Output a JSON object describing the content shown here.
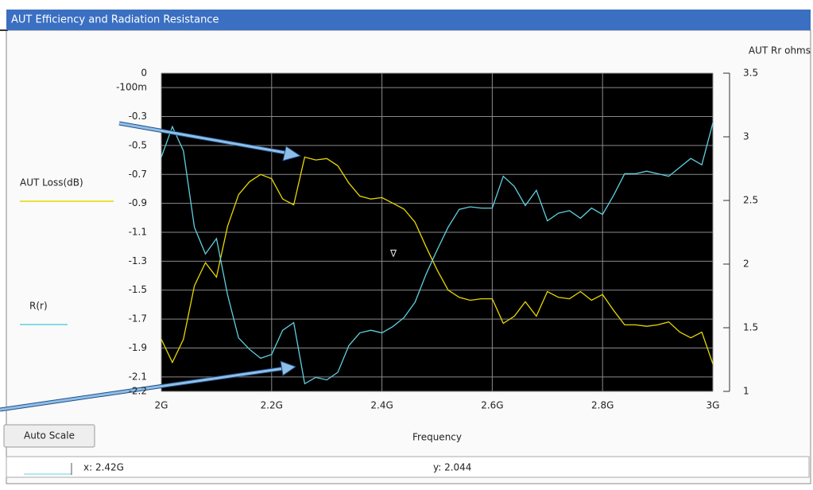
{
  "window": {
    "title": "AUT Efficiency and Radiation Resistance",
    "button": "Auto Scale",
    "status_x": "x: 2.42G",
    "status_y": "y: 2.044",
    "cursor_symbol": "∇"
  },
  "chart_data": {
    "type": "line",
    "x_label": "Frequency",
    "y2_label": "AUT Rr ohms",
    "x": [
      2,
      2.02,
      2.04,
      2.06,
      2.08,
      2.1,
      2.12,
      2.14,
      2.16,
      2.18,
      2.2,
      2.22,
      2.24,
      2.26,
      2.28,
      2.3,
      2.32,
      2.34,
      2.36,
      2.38,
      2.4,
      2.42,
      2.44,
      2.46,
      2.48,
      2.5,
      2.52,
      2.54,
      2.56,
      2.58,
      2.6,
      2.62,
      2.64,
      2.66,
      2.68,
      2.7,
      2.72,
      2.74,
      2.76,
      2.78,
      2.8,
      2.82,
      2.84,
      2.86,
      2.88,
      2.9,
      2.92,
      2.94,
      2.96,
      2.98,
      3
    ],
    "series": [
      {
        "name": "AUT Loss(dB)",
        "color": "#e8d800",
        "values": [
          -1.84,
          -2.0,
          -1.84,
          -1.47,
          -1.31,
          -1.41,
          -1.06,
          -0.84,
          -0.75,
          -0.7,
          -0.73,
          -0.87,
          -0.91,
          -0.58,
          -0.6,
          -0.59,
          -0.64,
          -0.76,
          -0.85,
          -0.87,
          -0.86,
          -0.9,
          -0.94,
          -1.03,
          -1.2,
          -1.36,
          -1.5,
          -1.55,
          -1.57,
          -1.56,
          -1.56,
          -1.73,
          -1.68,
          -1.58,
          -1.68,
          -1.51,
          -1.55,
          -1.56,
          -1.51,
          -1.57,
          -1.53,
          -1.64,
          -1.74,
          -1.74,
          -1.75,
          -1.74,
          -1.72,
          -1.79,
          -1.83,
          -1.79,
          -2.01
        ]
      },
      {
        "name": "R(r)",
        "color": "#5fd0e0",
        "axis": "y2",
        "values": [
          2.84,
          3.08,
          2.89,
          2.29,
          2.08,
          2.2,
          1.76,
          1.42,
          1.33,
          1.26,
          1.29,
          1.48,
          1.54,
          1.06,
          1.11,
          1.09,
          1.15,
          1.36,
          1.46,
          1.48,
          1.46,
          1.51,
          1.58,
          1.7,
          1.92,
          2.11,
          2.29,
          2.43,
          2.45,
          2.44,
          2.44,
          2.69,
          2.61,
          2.46,
          2.58,
          2.34,
          2.4,
          2.42,
          2.36,
          2.44,
          2.39,
          2.54,
          2.71,
          2.71,
          2.73,
          2.71,
          2.69,
          2.76,
          2.83,
          2.78,
          3.11
        ]
      }
    ],
    "xlim": [
      2,
      3
    ],
    "xticks": [
      {
        "value": 2,
        "label": "2G"
      },
      {
        "value": 2.2,
        "label": "2.2G"
      },
      {
        "value": 2.4,
        "label": "2.4G"
      },
      {
        "value": 2.6,
        "label": "2.6G"
      },
      {
        "value": 2.8,
        "label": "2.8G"
      },
      {
        "value": 3,
        "label": "3G"
      }
    ],
    "ylim": [
      -2.2,
      0
    ],
    "yticks": [
      0,
      {
        "value": -0.1,
        "label": "-100m"
      },
      -0.3,
      -0.5,
      -0.7,
      -0.9,
      -1.1,
      -1.3,
      -1.5,
      -1.7,
      -1.9,
      -2.1,
      -2.2
    ],
    "y2lim": [
      1,
      3.5
    ],
    "y2ticks": [
      1,
      1.5,
      2,
      2.5,
      3,
      3.5
    ],
    "grid": true
  }
}
